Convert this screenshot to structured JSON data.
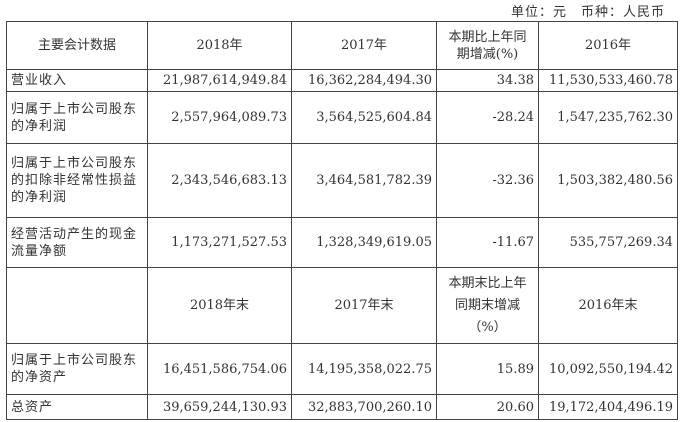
{
  "unit_note": "单位：元　币种：人民币",
  "header1": [
    "主要会计数据",
    "2018年",
    "2017年",
    "本期比上年同期增减(%)",
    "2016年"
  ],
  "rows1": [
    [
      "营业收入",
      "21,987,614,949.84",
      "16,362,284,494.30",
      "34.38",
      "11,530,533,460.78"
    ],
    [
      "归属于上市公司股东的净利润",
      "2,557,964,089.73",
      "3,564,525,604.84",
      "-28.24",
      "1,547,235,762.30"
    ],
    [
      "归属于上市公司股东的扣除非经常性损益的净利润",
      "2,343,546,683.13",
      "3,464,581,782.39",
      "-32.36",
      "1,503,382,480.56"
    ],
    [
      "经营活动产生的现金流量净额",
      "1,173,271,527.53",
      "1,328,349,619.05",
      "-11.67",
      "535,757,269.34"
    ]
  ],
  "header2": [
    "",
    "2018年末",
    "2017年末",
    "本期末比上年同期末增减（%）",
    "2016年末"
  ],
  "rows2": [
    [
      "归属于上市公司股东的净资产",
      "16,451,586,754.06",
      "14,195,358,022.75",
      "15.89",
      "10,092,550,194.42"
    ],
    [
      "总资产",
      "39,659,244,130.93",
      "32,883,700,260.10",
      "20.60",
      "19,172,404,496.19"
    ]
  ]
}
